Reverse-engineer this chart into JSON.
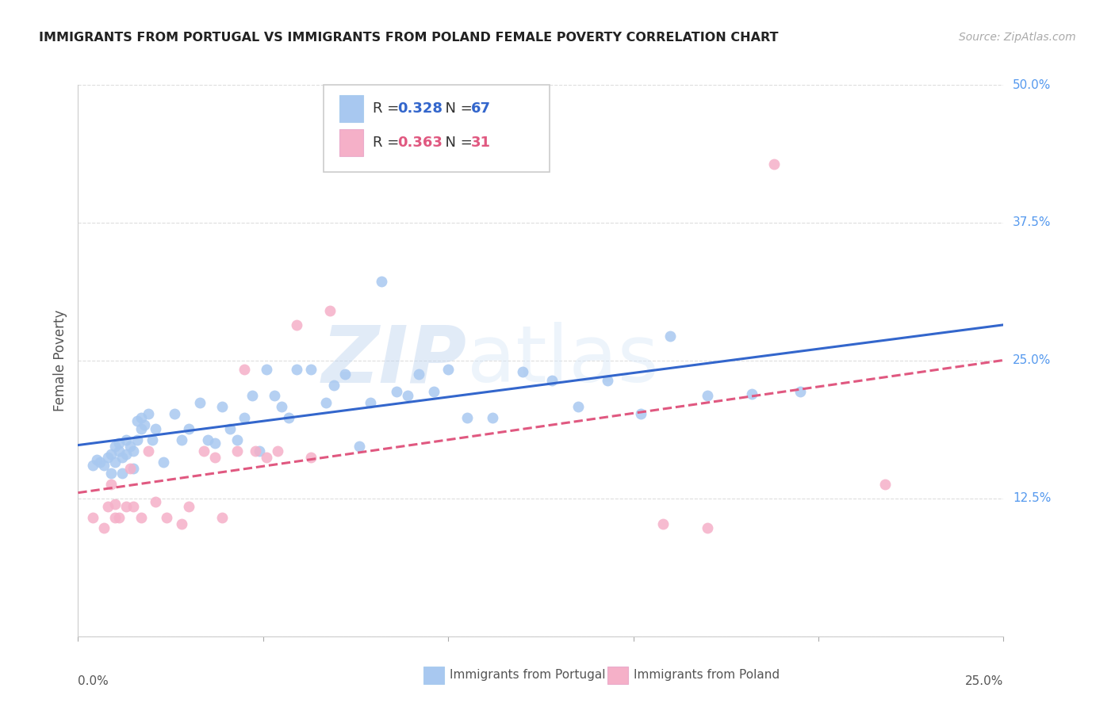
{
  "title": "IMMIGRANTS FROM PORTUGAL VS IMMIGRANTS FROM POLAND FEMALE POVERTY CORRELATION CHART",
  "source_text": "Source: ZipAtlas.com",
  "ylabel": "Female Poverty",
  "xlim": [
    0.0,
    0.25
  ],
  "ylim": [
    0.0,
    0.5
  ],
  "xticks": [
    0.0,
    0.05,
    0.1,
    0.15,
    0.2,
    0.25
  ],
  "xticklabels_left": "0.0%",
  "xticklabels_right": "25.0%",
  "ytick_vals": [
    0.0,
    0.125,
    0.25,
    0.375,
    0.5
  ],
  "ytick_labels": [
    "",
    "12.5%",
    "25.0%",
    "37.5%",
    "50.0%"
  ],
  "blue_scatter_color": "#a8c8f0",
  "pink_scatter_color": "#f5b0c8",
  "blue_line_color": "#3366cc",
  "pink_line_color": "#e05880",
  "R_blue": "0.328",
  "N_blue": "67",
  "R_pink": "0.363",
  "N_pink": "31",
  "legend_label_blue": "Immigrants from Portugal",
  "legend_label_pink": "Immigrants from Poland",
  "watermark_zip": "ZIP",
  "watermark_atlas": "atlas",
  "blue_x": [
    0.004,
    0.005,
    0.006,
    0.007,
    0.008,
    0.009,
    0.009,
    0.01,
    0.01,
    0.011,
    0.011,
    0.012,
    0.012,
    0.013,
    0.013,
    0.014,
    0.015,
    0.015,
    0.016,
    0.016,
    0.017,
    0.017,
    0.018,
    0.019,
    0.02,
    0.021,
    0.023,
    0.026,
    0.028,
    0.03,
    0.033,
    0.035,
    0.037,
    0.039,
    0.041,
    0.043,
    0.045,
    0.047,
    0.049,
    0.051,
    0.053,
    0.055,
    0.057,
    0.059,
    0.063,
    0.067,
    0.069,
    0.072,
    0.076,
    0.079,
    0.082,
    0.086,
    0.089,
    0.092,
    0.096,
    0.1,
    0.105,
    0.112,
    0.12,
    0.128,
    0.135,
    0.143,
    0.152,
    0.16,
    0.17,
    0.182,
    0.195
  ],
  "blue_y": [
    0.155,
    0.16,
    0.158,
    0.155,
    0.162,
    0.148,
    0.165,
    0.158,
    0.172,
    0.168,
    0.175,
    0.148,
    0.162,
    0.178,
    0.165,
    0.172,
    0.152,
    0.168,
    0.178,
    0.195,
    0.198,
    0.188,
    0.192,
    0.202,
    0.178,
    0.188,
    0.158,
    0.202,
    0.178,
    0.188,
    0.212,
    0.178,
    0.175,
    0.208,
    0.188,
    0.178,
    0.198,
    0.218,
    0.168,
    0.242,
    0.218,
    0.208,
    0.198,
    0.242,
    0.242,
    0.212,
    0.228,
    0.238,
    0.172,
    0.212,
    0.322,
    0.222,
    0.218,
    0.238,
    0.222,
    0.242,
    0.198,
    0.198,
    0.24,
    0.232,
    0.208,
    0.232,
    0.202,
    0.272,
    0.218,
    0.22,
    0.222
  ],
  "pink_x": [
    0.004,
    0.007,
    0.008,
    0.009,
    0.01,
    0.01,
    0.011,
    0.013,
    0.014,
    0.015,
    0.017,
    0.019,
    0.021,
    0.024,
    0.028,
    0.03,
    0.034,
    0.037,
    0.039,
    0.043,
    0.045,
    0.048,
    0.051,
    0.054,
    0.059,
    0.063,
    0.068,
    0.158,
    0.17,
    0.188,
    0.218
  ],
  "pink_y": [
    0.108,
    0.098,
    0.118,
    0.138,
    0.108,
    0.12,
    0.108,
    0.118,
    0.152,
    0.118,
    0.108,
    0.168,
    0.122,
    0.108,
    0.102,
    0.118,
    0.168,
    0.162,
    0.108,
    0.168,
    0.242,
    0.168,
    0.162,
    0.168,
    0.282,
    0.162,
    0.295,
    0.102,
    0.098,
    0.428,
    0.138
  ]
}
